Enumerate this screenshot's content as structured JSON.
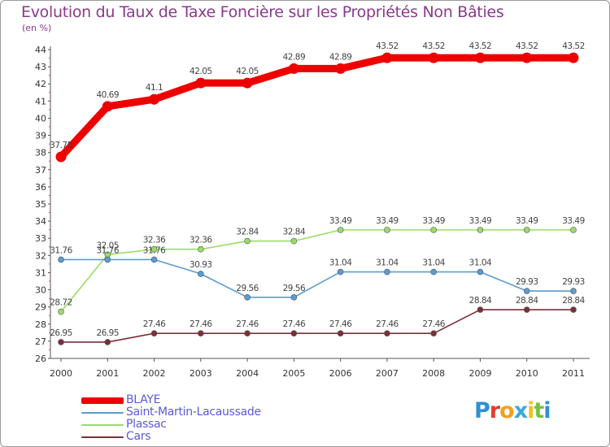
{
  "chart_data": {
    "type": "line",
    "title": "Evolution du Taux de Taxe Foncière sur les Propriétés Non Bâties",
    "unit": "(en %)",
    "x": [
      "2000",
      "2001",
      "2002",
      "2003",
      "2004",
      "2005",
      "2006",
      "2007",
      "2008",
      "2009",
      "2010",
      "2011"
    ],
    "ylim": [
      26,
      44
    ],
    "yticks": [
      "26",
      "27",
      "28",
      "29",
      "30",
      "31",
      "32",
      "33",
      "34",
      "35",
      "36",
      "37",
      "38",
      "39",
      "40",
      "41",
      "42",
      "43",
      "44"
    ],
    "series": [
      {
        "name": "BLAYE",
        "color": "#ee0000",
        "values": [
          37.75,
          40.69,
          41.1,
          42.05,
          42.05,
          42.89,
          42.89,
          43.52,
          43.52,
          43.52,
          43.52,
          43.52
        ],
        "labels": [
          "37.75",
          "40.69",
          "41.1",
          "42.05",
          "42.05",
          "42.89",
          "42.89",
          "43.52",
          "43.52",
          "43.52",
          "43.52",
          "43.52"
        ]
      },
      {
        "name": "Saint-Martin-Lacaussade",
        "color": "#5b9bd5",
        "values": [
          31.76,
          31.76,
          31.76,
          30.93,
          29.56,
          29.56,
          31.04,
          31.04,
          31.04,
          31.04,
          29.93,
          29.93
        ],
        "labels": [
          "31.76",
          "31.76",
          "31.76",
          "30.93",
          "29.56",
          "29.56",
          "31.04",
          "31.04",
          "31.04",
          "31.04",
          "29.93",
          "29.93"
        ]
      },
      {
        "name": "Plassac",
        "color": "#99dd66",
        "values": [
          28.72,
          32.05,
          32.36,
          32.36,
          32.84,
          32.84,
          33.49,
          33.49,
          33.49,
          33.49,
          33.49,
          33.49
        ],
        "labels": [
          "28.72",
          "32.05",
          "32.36",
          "32.36",
          "32.84",
          "32.84",
          "33.49",
          "33.49",
          "33.49",
          "33.49",
          "33.49",
          "33.49"
        ]
      },
      {
        "name": "Cars",
        "color": "#7a3038",
        "values": [
          26.95,
          26.95,
          27.46,
          27.46,
          27.46,
          27.46,
          27.46,
          27.46,
          27.46,
          28.84,
          28.84,
          28.84
        ],
        "labels": [
          "26.95",
          "26.95",
          "27.46",
          "27.46",
          "27.46",
          "27.46",
          "27.46",
          "27.46",
          "27.46",
          "28.84",
          "28.84",
          "28.84"
        ]
      }
    ],
    "legend_position": "bottom-left"
  },
  "logo": {
    "text": "Proxiti",
    "colors": [
      "#2f8fd8",
      "#e63b2e",
      "#f0a020",
      "#3aa7e0",
      "#f0c020",
      "#7ac043",
      "#2f8fd8"
    ]
  }
}
